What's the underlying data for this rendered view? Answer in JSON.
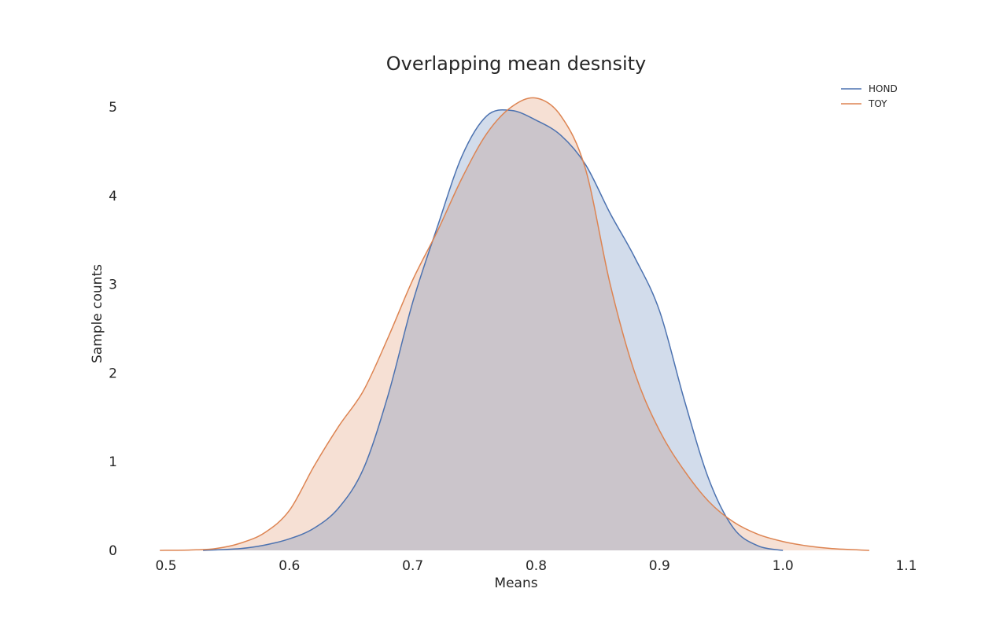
{
  "chart_data": {
    "type": "area",
    "title": "Overlapping mean desnsity",
    "xlabel": "Means",
    "ylabel": "Sample counts",
    "xlim": [
      0.5,
      1.1
    ],
    "ylim": [
      0,
      5.2
    ],
    "xticks": [
      "0.5",
      "0.6",
      "0.7",
      "0.8",
      "0.9",
      "1.0",
      "1.1"
    ],
    "yticks": [
      "0",
      "1",
      "2",
      "3",
      "4",
      "5"
    ],
    "grid": false,
    "legend": "top-right",
    "series": [
      {
        "name": "HOND",
        "color": "#4c72b0",
        "x": [
          0.53,
          0.56,
          0.58,
          0.6,
          0.62,
          0.64,
          0.66,
          0.68,
          0.7,
          0.72,
          0.74,
          0.76,
          0.78,
          0.8,
          0.82,
          0.84,
          0.86,
          0.88,
          0.9,
          0.92,
          0.94,
          0.96,
          0.98,
          1.0
        ],
        "y": [
          0.0,
          0.02,
          0.06,
          0.13,
          0.25,
          0.48,
          0.92,
          1.75,
          2.8,
          3.65,
          4.45,
          4.9,
          4.96,
          4.85,
          4.68,
          4.35,
          3.8,
          3.3,
          2.7,
          1.7,
          0.8,
          0.25,
          0.05,
          0.0
        ]
      },
      {
        "name": "TOY",
        "color": "#dd8452",
        "x": [
          0.495,
          0.52,
          0.54,
          0.56,
          0.58,
          0.6,
          0.62,
          0.64,
          0.66,
          0.68,
          0.7,
          0.72,
          0.74,
          0.76,
          0.78,
          0.8,
          0.82,
          0.84,
          0.86,
          0.88,
          0.9,
          0.92,
          0.94,
          0.96,
          0.98,
          1.0,
          1.02,
          1.04,
          1.07
        ],
        "y": [
          0.0,
          0.005,
          0.02,
          0.08,
          0.2,
          0.45,
          0.95,
          1.4,
          1.8,
          2.4,
          3.05,
          3.6,
          4.2,
          4.7,
          5.0,
          5.1,
          4.9,
          4.3,
          3.0,
          2.0,
          1.35,
          0.9,
          0.55,
          0.32,
          0.18,
          0.1,
          0.05,
          0.02,
          0.0
        ]
      }
    ]
  }
}
